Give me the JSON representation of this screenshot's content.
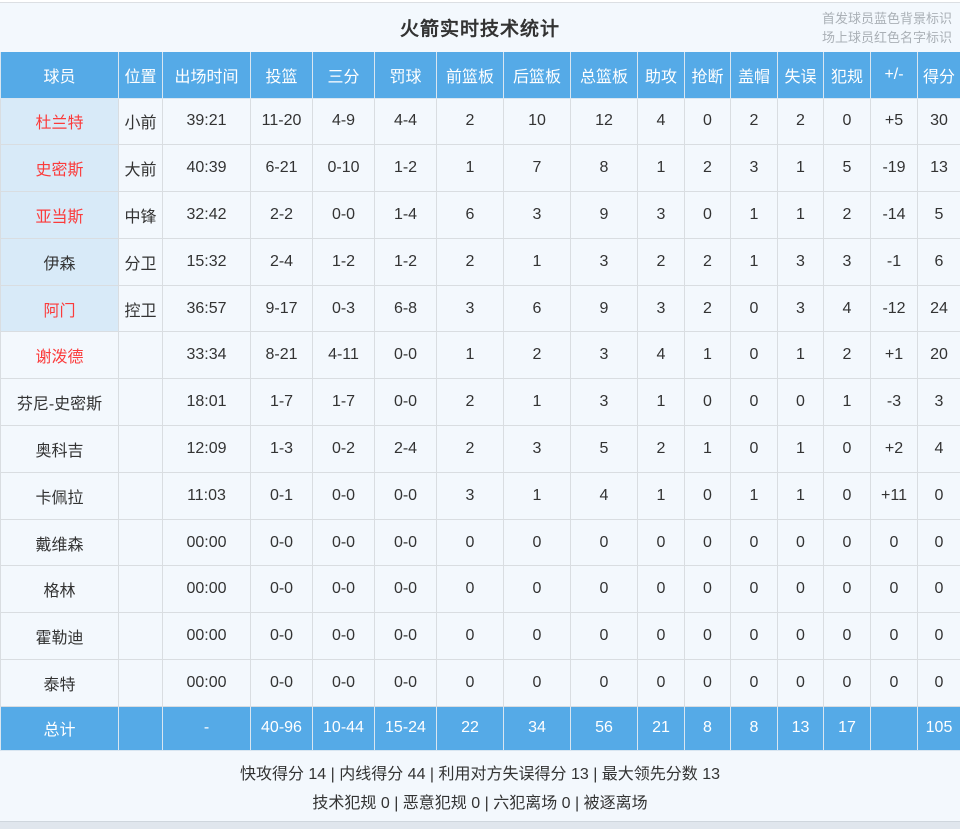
{
  "header": {
    "title": "火箭实时技术统计",
    "legend_line1": "首发球员蓝色背景标识",
    "legend_line2": "场上球员红色名字标识"
  },
  "table": {
    "columns": [
      "球员",
      "位置",
      "出场时间",
      "投篮",
      "三分",
      "罚球",
      "前篮板",
      "后篮板",
      "总篮板",
      "助攻",
      "抢断",
      "盖帽",
      "失误",
      "犯规",
      "+/-",
      "得分"
    ],
    "rows": [
      {
        "name": "杜兰特",
        "starter": true,
        "on_court": true,
        "position": "小前",
        "minutes": "39:21",
        "fg": "11-20",
        "three": "4-9",
        "ft": "4-4",
        "oreb": "2",
        "dreb": "10",
        "reb": "12",
        "ast": "4",
        "stl": "0",
        "blk": "2",
        "to": "2",
        "pf": "0",
        "plus_minus": "+5",
        "pts": "30"
      },
      {
        "name": "史密斯",
        "starter": true,
        "on_court": true,
        "position": "大前",
        "minutes": "40:39",
        "fg": "6-21",
        "three": "0-10",
        "ft": "1-2",
        "oreb": "1",
        "dreb": "7",
        "reb": "8",
        "ast": "1",
        "stl": "2",
        "blk": "3",
        "to": "1",
        "pf": "5",
        "plus_minus": "-19",
        "pts": "13"
      },
      {
        "name": "亚当斯",
        "starter": true,
        "on_court": true,
        "position": "中锋",
        "minutes": "32:42",
        "fg": "2-2",
        "three": "0-0",
        "ft": "1-4",
        "oreb": "6",
        "dreb": "3",
        "reb": "9",
        "ast": "3",
        "stl": "0",
        "blk": "1",
        "to": "1",
        "pf": "2",
        "plus_minus": "-14",
        "pts": "5"
      },
      {
        "name": "伊森",
        "starter": true,
        "on_court": false,
        "position": "分卫",
        "minutes": "15:32",
        "fg": "2-4",
        "three": "1-2",
        "ft": "1-2",
        "oreb": "2",
        "dreb": "1",
        "reb": "3",
        "ast": "2",
        "stl": "2",
        "blk": "1",
        "to": "3",
        "pf": "3",
        "plus_minus": "-1",
        "pts": "6"
      },
      {
        "name": "阿门",
        "starter": true,
        "on_court": true,
        "position": "控卫",
        "minutes": "36:57",
        "fg": "9-17",
        "three": "0-3",
        "ft": "6-8",
        "oreb": "3",
        "dreb": "6",
        "reb": "9",
        "ast": "3",
        "stl": "2",
        "blk": "0",
        "to": "3",
        "pf": "4",
        "plus_minus": "-12",
        "pts": "24"
      },
      {
        "name": "谢泼德",
        "starter": false,
        "on_court": true,
        "position": "",
        "minutes": "33:34",
        "fg": "8-21",
        "three": "4-11",
        "ft": "0-0",
        "oreb": "1",
        "dreb": "2",
        "reb": "3",
        "ast": "4",
        "stl": "1",
        "blk": "0",
        "to": "1",
        "pf": "2",
        "plus_minus": "+1",
        "pts": "20"
      },
      {
        "name": "芬尼-史密斯",
        "starter": false,
        "on_court": false,
        "position": "",
        "minutes": "18:01",
        "fg": "1-7",
        "three": "1-7",
        "ft": "0-0",
        "oreb": "2",
        "dreb": "1",
        "reb": "3",
        "ast": "1",
        "stl": "0",
        "blk": "0",
        "to": "0",
        "pf": "1",
        "plus_minus": "-3",
        "pts": "3"
      },
      {
        "name": "奥科吉",
        "starter": false,
        "on_court": false,
        "position": "",
        "minutes": "12:09",
        "fg": "1-3",
        "three": "0-2",
        "ft": "2-4",
        "oreb": "2",
        "dreb": "3",
        "reb": "5",
        "ast": "2",
        "stl": "1",
        "blk": "0",
        "to": "1",
        "pf": "0",
        "plus_minus": "+2",
        "pts": "4"
      },
      {
        "name": "卡佩拉",
        "starter": false,
        "on_court": false,
        "position": "",
        "minutes": "11:03",
        "fg": "0-1",
        "three": "0-0",
        "ft": "0-0",
        "oreb": "3",
        "dreb": "1",
        "reb": "4",
        "ast": "1",
        "stl": "0",
        "blk": "1",
        "to": "1",
        "pf": "0",
        "plus_minus": "+11",
        "pts": "0"
      },
      {
        "name": "戴维森",
        "starter": false,
        "on_court": false,
        "position": "",
        "minutes": "00:00",
        "fg": "0-0",
        "three": "0-0",
        "ft": "0-0",
        "oreb": "0",
        "dreb": "0",
        "reb": "0",
        "ast": "0",
        "stl": "0",
        "blk": "0",
        "to": "0",
        "pf": "0",
        "plus_minus": "0",
        "pts": "0"
      },
      {
        "name": "格林",
        "starter": false,
        "on_court": false,
        "position": "",
        "minutes": "00:00",
        "fg": "0-0",
        "three": "0-0",
        "ft": "0-0",
        "oreb": "0",
        "dreb": "0",
        "reb": "0",
        "ast": "0",
        "stl": "0",
        "blk": "0",
        "to": "0",
        "pf": "0",
        "plus_minus": "0",
        "pts": "0"
      },
      {
        "name": "霍勒迪",
        "starter": false,
        "on_court": false,
        "position": "",
        "minutes": "00:00",
        "fg": "0-0",
        "three": "0-0",
        "ft": "0-0",
        "oreb": "0",
        "dreb": "0",
        "reb": "0",
        "ast": "0",
        "stl": "0",
        "blk": "0",
        "to": "0",
        "pf": "0",
        "plus_minus": "0",
        "pts": "0"
      },
      {
        "name": "泰特",
        "starter": false,
        "on_court": false,
        "position": "",
        "minutes": "00:00",
        "fg": "0-0",
        "three": "0-0",
        "ft": "0-0",
        "oreb": "0",
        "dreb": "0",
        "reb": "0",
        "ast": "0",
        "stl": "0",
        "blk": "0",
        "to": "0",
        "pf": "0",
        "plus_minus": "0",
        "pts": "0"
      }
    ],
    "total": {
      "name": "总计",
      "position": "",
      "minutes": "-",
      "fg": "40-96",
      "three": "10-44",
      "ft": "15-24",
      "oreb": "22",
      "dreb": "34",
      "reb": "56",
      "ast": "21",
      "stl": "8",
      "blk": "8",
      "to": "13",
      "pf": "17",
      "plus_minus": "",
      "pts": "105"
    }
  },
  "footer": {
    "line1": "快攻得分 14 | 内线得分 44 | 利用对方失误得分 13 | 最大领先分数 13",
    "line2": "技术犯规 0 | 恶意犯规 0 | 六犯离场 0 | 被逐离场"
  },
  "colors": {
    "header_blue": "#55aae7",
    "starter_name_bg": "#d8eaf8",
    "row_bg": "#f3f8fd",
    "on_court_red": "#fb3b3b",
    "legend_gray": "#aab0b6"
  }
}
